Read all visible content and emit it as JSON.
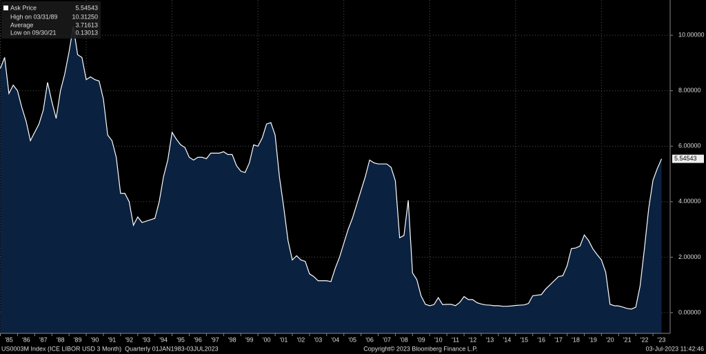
{
  "chart_data": {
    "type": "area",
    "series": [
      {
        "name": "Ask Price",
        "color": "#ffffff",
        "fill": "#0b2140",
        "values": [
          8.8,
          9.2,
          7.9,
          8.2,
          8.0,
          7.4,
          6.9,
          6.2,
          6.5,
          6.8,
          7.3,
          8.3,
          7.6,
          7.0,
          8.0,
          8.6,
          9.4,
          10.3125,
          9.3,
          9.2,
          8.4,
          8.5,
          8.4,
          8.35,
          7.7,
          6.4,
          6.2,
          5.6,
          4.3,
          4.3,
          4.0,
          3.15,
          3.45,
          3.25,
          3.3,
          3.35,
          3.4,
          4.0,
          4.9,
          5.5,
          6.5,
          6.25,
          6.05,
          5.95,
          5.6,
          5.5,
          5.6,
          5.6,
          5.55,
          5.75,
          5.75,
          5.75,
          5.8,
          5.7,
          5.7,
          5.3,
          5.1,
          5.05,
          5.4,
          6.05,
          6.0,
          6.3,
          6.8,
          6.85,
          6.4,
          4.9,
          3.8,
          2.6,
          1.9,
          2.05,
          1.9,
          1.85,
          1.4,
          1.3,
          1.15,
          1.15,
          1.15,
          1.12,
          1.6,
          2.0,
          2.5,
          3.0,
          3.4,
          3.9,
          4.4,
          4.9,
          5.5,
          5.4,
          5.36,
          5.36,
          5.36,
          5.24,
          4.75,
          2.7,
          2.78,
          4.05,
          1.43,
          1.19,
          0.6,
          0.3,
          0.25,
          0.29,
          0.54,
          0.29,
          0.3,
          0.3,
          0.25,
          0.37,
          0.58,
          0.47,
          0.47,
          0.36,
          0.31,
          0.28,
          0.27,
          0.25,
          0.25,
          0.23,
          0.23,
          0.24,
          0.26,
          0.27,
          0.28,
          0.33,
          0.61,
          0.63,
          0.65,
          0.85,
          1.0,
          1.15,
          1.3,
          1.33,
          1.69,
          2.31,
          2.33,
          2.4,
          2.8,
          2.6,
          2.3,
          2.09,
          1.9,
          1.45,
          0.3,
          0.25,
          0.24,
          0.2,
          0.15,
          0.13013,
          0.2,
          0.96,
          2.29,
          3.75,
          4.77,
          5.19,
          5.54543
        ]
      }
    ],
    "x": [
      1985,
      1985.25,
      1985.5,
      1985.75,
      1986,
      1986.25,
      1986.5,
      1986.75,
      1987,
      1987.25,
      1987.5,
      1987.75,
      1988,
      1988.25,
      1988.5,
      1988.75,
      1989,
      1989.25,
      1989.5,
      1989.75,
      1990,
      1990.25,
      1990.5,
      1990.75,
      1991,
      1991.25,
      1991.5,
      1991.75,
      1992,
      1992.25,
      1992.5,
      1992.75,
      1993,
      1993.25,
      1993.5,
      1993.75,
      1994,
      1994.25,
      1994.5,
      1994.75,
      1995,
      1995.25,
      1995.5,
      1995.75,
      1996,
      1996.25,
      1996.5,
      1996.75,
      1997,
      1997.25,
      1997.5,
      1997.75,
      1998,
      1998.25,
      1998.5,
      1998.75,
      1999,
      1999.25,
      1999.5,
      1999.75,
      2000,
      2000.25,
      2000.5,
      2000.75,
      2001,
      2001.25,
      2001.5,
      2001.75,
      2002,
      2002.25,
      2002.5,
      2002.75,
      2003,
      2003.25,
      2003.5,
      2003.75,
      2004,
      2004.25,
      2004.5,
      2004.75,
      2005,
      2005.25,
      2005.5,
      2005.75,
      2006,
      2006.25,
      2006.5,
      2006.75,
      2007,
      2007.25,
      2007.5,
      2007.75,
      2008,
      2008.25,
      2008.5,
      2008.75,
      2009,
      2009.25,
      2009.5,
      2009.75,
      2010,
      2010.25,
      2010.5,
      2010.75,
      2011,
      2011.25,
      2011.5,
      2011.75,
      2012,
      2012.25,
      2012.5,
      2012.75,
      2013,
      2013.25,
      2013.5,
      2013.75,
      2014,
      2014.25,
      2014.5,
      2014.75,
      2015,
      2015.25,
      2015.5,
      2015.75,
      2016,
      2016.25,
      2016.5,
      2016.75,
      2017,
      2017.25,
      2017.5,
      2017.75,
      2018,
      2018.25,
      2018.5,
      2018.75,
      2019,
      2019.25,
      2019.5,
      2019.75,
      2020,
      2020.25,
      2020.5,
      2020.75,
      2021,
      2021.25,
      2021.5,
      2021.75,
      2022,
      2022.25,
      2022.5,
      2022.75,
      2023,
      2023.25,
      2023.5
    ],
    "xlim": [
      1984.98,
      2024.0
    ],
    "xticks": [
      {
        "value": 1985,
        "label": "'85"
      },
      {
        "value": 1986,
        "label": "'86"
      },
      {
        "value": 1987,
        "label": "'87"
      },
      {
        "value": 1988,
        "label": "'88"
      },
      {
        "value": 1989,
        "label": "'89"
      },
      {
        "value": 1990,
        "label": "'90"
      },
      {
        "value": 1991,
        "label": "'91"
      },
      {
        "value": 1992,
        "label": "'92"
      },
      {
        "value": 1993,
        "label": "'93"
      },
      {
        "value": 1994,
        "label": "'94"
      },
      {
        "value": 1995,
        "label": "'95"
      },
      {
        "value": 1996,
        "label": "'96"
      },
      {
        "value": 1997,
        "label": "'97"
      },
      {
        "value": 1998,
        "label": "'98"
      },
      {
        "value": 1999,
        "label": "'99"
      },
      {
        "value": 2000,
        "label": "'00"
      },
      {
        "value": 2001,
        "label": "'01"
      },
      {
        "value": 2002,
        "label": "'02"
      },
      {
        "value": 2003,
        "label": "'03"
      },
      {
        "value": 2004,
        "label": "'04"
      },
      {
        "value": 2005,
        "label": "'05"
      },
      {
        "value": 2006,
        "label": "'06"
      },
      {
        "value": 2007,
        "label": "'07"
      },
      {
        "value": 2008,
        "label": "'08"
      },
      {
        "value": 2009,
        "label": "'09"
      },
      {
        "value": 2010,
        "label": "'10"
      },
      {
        "value": 2011,
        "label": "'11"
      },
      {
        "value": 2012,
        "label": "'12"
      },
      {
        "value": 2013,
        "label": "'13"
      },
      {
        "value": 2014,
        "label": "'14"
      },
      {
        "value": 2015,
        "label": "'15"
      },
      {
        "value": 2016,
        "label": "'16"
      },
      {
        "value": 2017,
        "label": "'17"
      },
      {
        "value": 2018,
        "label": "'18"
      },
      {
        "value": 2019,
        "label": "'19"
      },
      {
        "value": 2020,
        "label": "'20"
      },
      {
        "value": 2021,
        "label": "'21"
      },
      {
        "value": 2022,
        "label": "'22"
      },
      {
        "value": 2023,
        "label": "'23"
      }
    ],
    "ylim": [
      -0.746,
      11.27
    ],
    "yticks": [
      {
        "value": 0,
        "label": "0.00000"
      },
      {
        "value": 2,
        "label": "2.00000"
      },
      {
        "value": 4,
        "label": "4.00000"
      },
      {
        "value": 6,
        "label": "6.00000"
      },
      {
        "value": 8,
        "label": "8.00000"
      },
      {
        "value": 10,
        "label": "10.00000"
      }
    ],
    "grid": true,
    "last_value_label": "5.54543",
    "legend_stats": [
      {
        "label": "High on 03/31/89",
        "value": "10.31250"
      },
      {
        "label": "Average",
        "value": "3.71613"
      },
      {
        "label": "Low on 09/30/21",
        "value": "0.13013"
      }
    ],
    "footer": {
      "left": "US0003M Index (ICE LIBOR USD 3 Month)  Quarterly 01JAN1983-03JUL2023",
      "center": "Copyright© 2023 Bloomberg Finance L.P.",
      "right": "03-Jul-2023 11:42:46"
    }
  }
}
